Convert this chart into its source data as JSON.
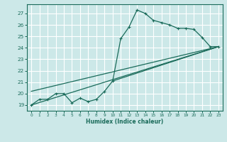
{
  "title": "",
  "xlabel": "Humidex (Indice chaleur)",
  "bg_color": "#cce8e8",
  "grid_color": "#ffffff",
  "line_color": "#1a6b5a",
  "xlim": [
    -0.5,
    23.5
  ],
  "ylim": [
    18.5,
    27.8
  ],
  "xticks": [
    0,
    1,
    2,
    3,
    4,
    5,
    6,
    7,
    8,
    9,
    10,
    11,
    12,
    13,
    14,
    15,
    16,
    17,
    18,
    19,
    20,
    21,
    22,
    23
  ],
  "yticks": [
    19,
    20,
    21,
    22,
    23,
    24,
    25,
    26,
    27
  ],
  "scatter_line": [
    [
      0,
      19.0
    ],
    [
      1,
      19.5
    ],
    [
      2,
      19.5
    ],
    [
      3,
      20.0
    ],
    [
      4,
      20.0
    ],
    [
      5,
      19.2
    ],
    [
      6,
      19.6
    ],
    [
      7,
      19.3
    ],
    [
      8,
      19.5
    ],
    [
      9,
      20.2
    ],
    [
      10,
      21.1
    ],
    [
      11,
      24.8
    ],
    [
      12,
      25.8
    ],
    [
      13,
      27.3
    ],
    [
      14,
      27.0
    ],
    [
      15,
      26.4
    ],
    [
      16,
      26.2
    ],
    [
      17,
      26.0
    ],
    [
      18,
      25.7
    ],
    [
      19,
      25.7
    ],
    [
      20,
      25.6
    ],
    [
      21,
      24.9
    ],
    [
      22,
      24.1
    ],
    [
      23,
      24.1
    ]
  ],
  "reg_line1": [
    [
      0,
      19.0
    ],
    [
      23,
      24.1
    ]
  ],
  "reg_line2": [
    [
      0,
      20.2
    ],
    [
      23,
      24.1
    ]
  ],
  "reg_line3": [
    [
      10,
      21.1
    ],
    [
      23,
      24.1
    ]
  ]
}
